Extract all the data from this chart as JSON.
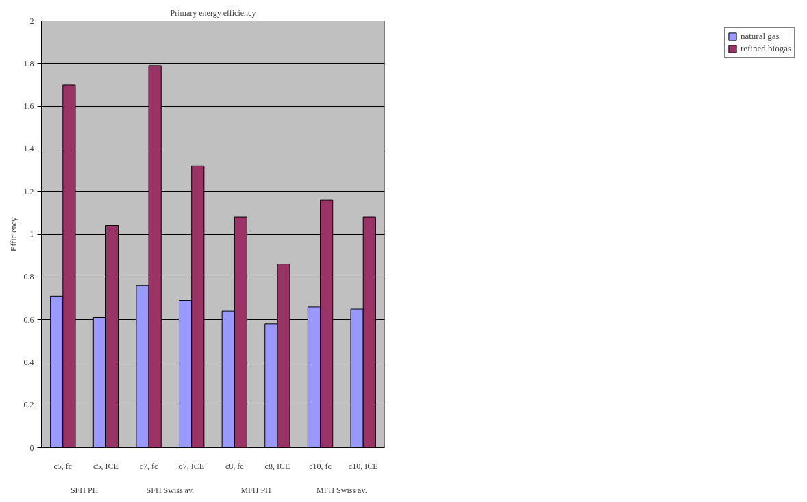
{
  "chart_data": {
    "type": "bar",
    "title": "Primary energy efficiency",
    "ylabel": "Efficiency",
    "categories": [
      "c5, fc",
      "c5, ICE",
      "c7, fc",
      "c7, ICE",
      "c8, fc",
      "c8, ICE",
      "c10, fc",
      "c10, ICE"
    ],
    "annotations": [
      "SFH PH",
      "SFH Swiss av.",
      "MFH PH",
      "MFH Swiss av."
    ],
    "series": [
      {
        "name": "natural gas",
        "color": "#9999ff",
        "values": [
          0.71,
          0.61,
          0.76,
          0.69,
          0.64,
          0.58,
          0.66,
          0.65
        ]
      },
      {
        "name": "refined biogas",
        "color": "#993366",
        "values": [
          1.7,
          1.04,
          1.79,
          1.32,
          1.08,
          0.86,
          1.16,
          1.08
        ]
      }
    ],
    "ylim": [
      0,
      2
    ],
    "yticks": [
      0,
      0.2,
      0.4,
      0.6,
      0.8,
      1,
      1.2,
      1.4,
      1.6,
      1.8,
      2
    ],
    "grid": "y",
    "legend": "right"
  }
}
